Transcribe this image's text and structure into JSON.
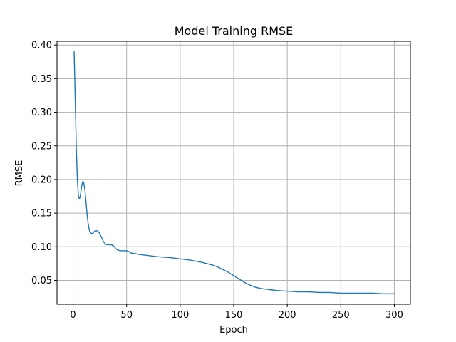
{
  "chart_data": {
    "type": "line",
    "title": "Model Training RMSE",
    "xlabel": "Epoch",
    "ylabel": "RMSE",
    "xlim": [
      -15,
      315
    ],
    "ylim": [
      0.0145,
      0.4055
    ],
    "xticks": [
      0,
      50,
      100,
      150,
      200,
      250,
      300
    ],
    "xtick_labels": [
      "0",
      "50",
      "100",
      "150",
      "200",
      "250",
      "300"
    ],
    "yticks": [
      0.05,
      0.1,
      0.15,
      0.2,
      0.25,
      0.3,
      0.35,
      0.4
    ],
    "ytick_labels": [
      "0.05",
      "0.10",
      "0.15",
      "0.20",
      "0.25",
      "0.30",
      "0.35",
      "0.40"
    ],
    "grid": true,
    "series": [
      {
        "color": "#1f77b4",
        "x": [
          1,
          2,
          3,
          4,
          5,
          6,
          7,
          8,
          9,
          10,
          11,
          12,
          13,
          14,
          15,
          16,
          17,
          18,
          19,
          20,
          22,
          24,
          26,
          28,
          30,
          32,
          34,
          36,
          38,
          40,
          42,
          44,
          46,
          48,
          50,
          52,
          54,
          56,
          58,
          60,
          65,
          70,
          75,
          80,
          90,
          100,
          110,
          120,
          125,
          130,
          135,
          140,
          145,
          150,
          155,
          160,
          165,
          170,
          175,
          180,
          190,
          200,
          210,
          220,
          230,
          240,
          250,
          260,
          270,
          280,
          290,
          300
        ],
        "y": [
          0.39,
          0.32,
          0.25,
          0.2,
          0.175,
          0.171,
          0.178,
          0.19,
          0.197,
          0.195,
          0.185,
          0.168,
          0.15,
          0.135,
          0.126,
          0.121,
          0.12,
          0.12,
          0.121,
          0.123,
          0.124,
          0.122,
          0.116,
          0.109,
          0.104,
          0.103,
          0.103,
          0.103,
          0.101,
          0.097,
          0.095,
          0.094,
          0.094,
          0.094,
          0.094,
          0.093,
          0.091,
          0.09,
          0.09,
          0.089,
          0.088,
          0.087,
          0.086,
          0.085,
          0.084,
          0.082,
          0.08,
          0.077,
          0.075,
          0.073,
          0.07,
          0.066,
          0.062,
          0.057,
          0.052,
          0.047,
          0.043,
          0.04,
          0.038,
          0.037,
          0.035,
          0.034,
          0.033,
          0.033,
          0.032,
          0.032,
          0.031,
          0.031,
          0.031,
          0.031,
          0.03,
          0.03
        ]
      }
    ]
  }
}
